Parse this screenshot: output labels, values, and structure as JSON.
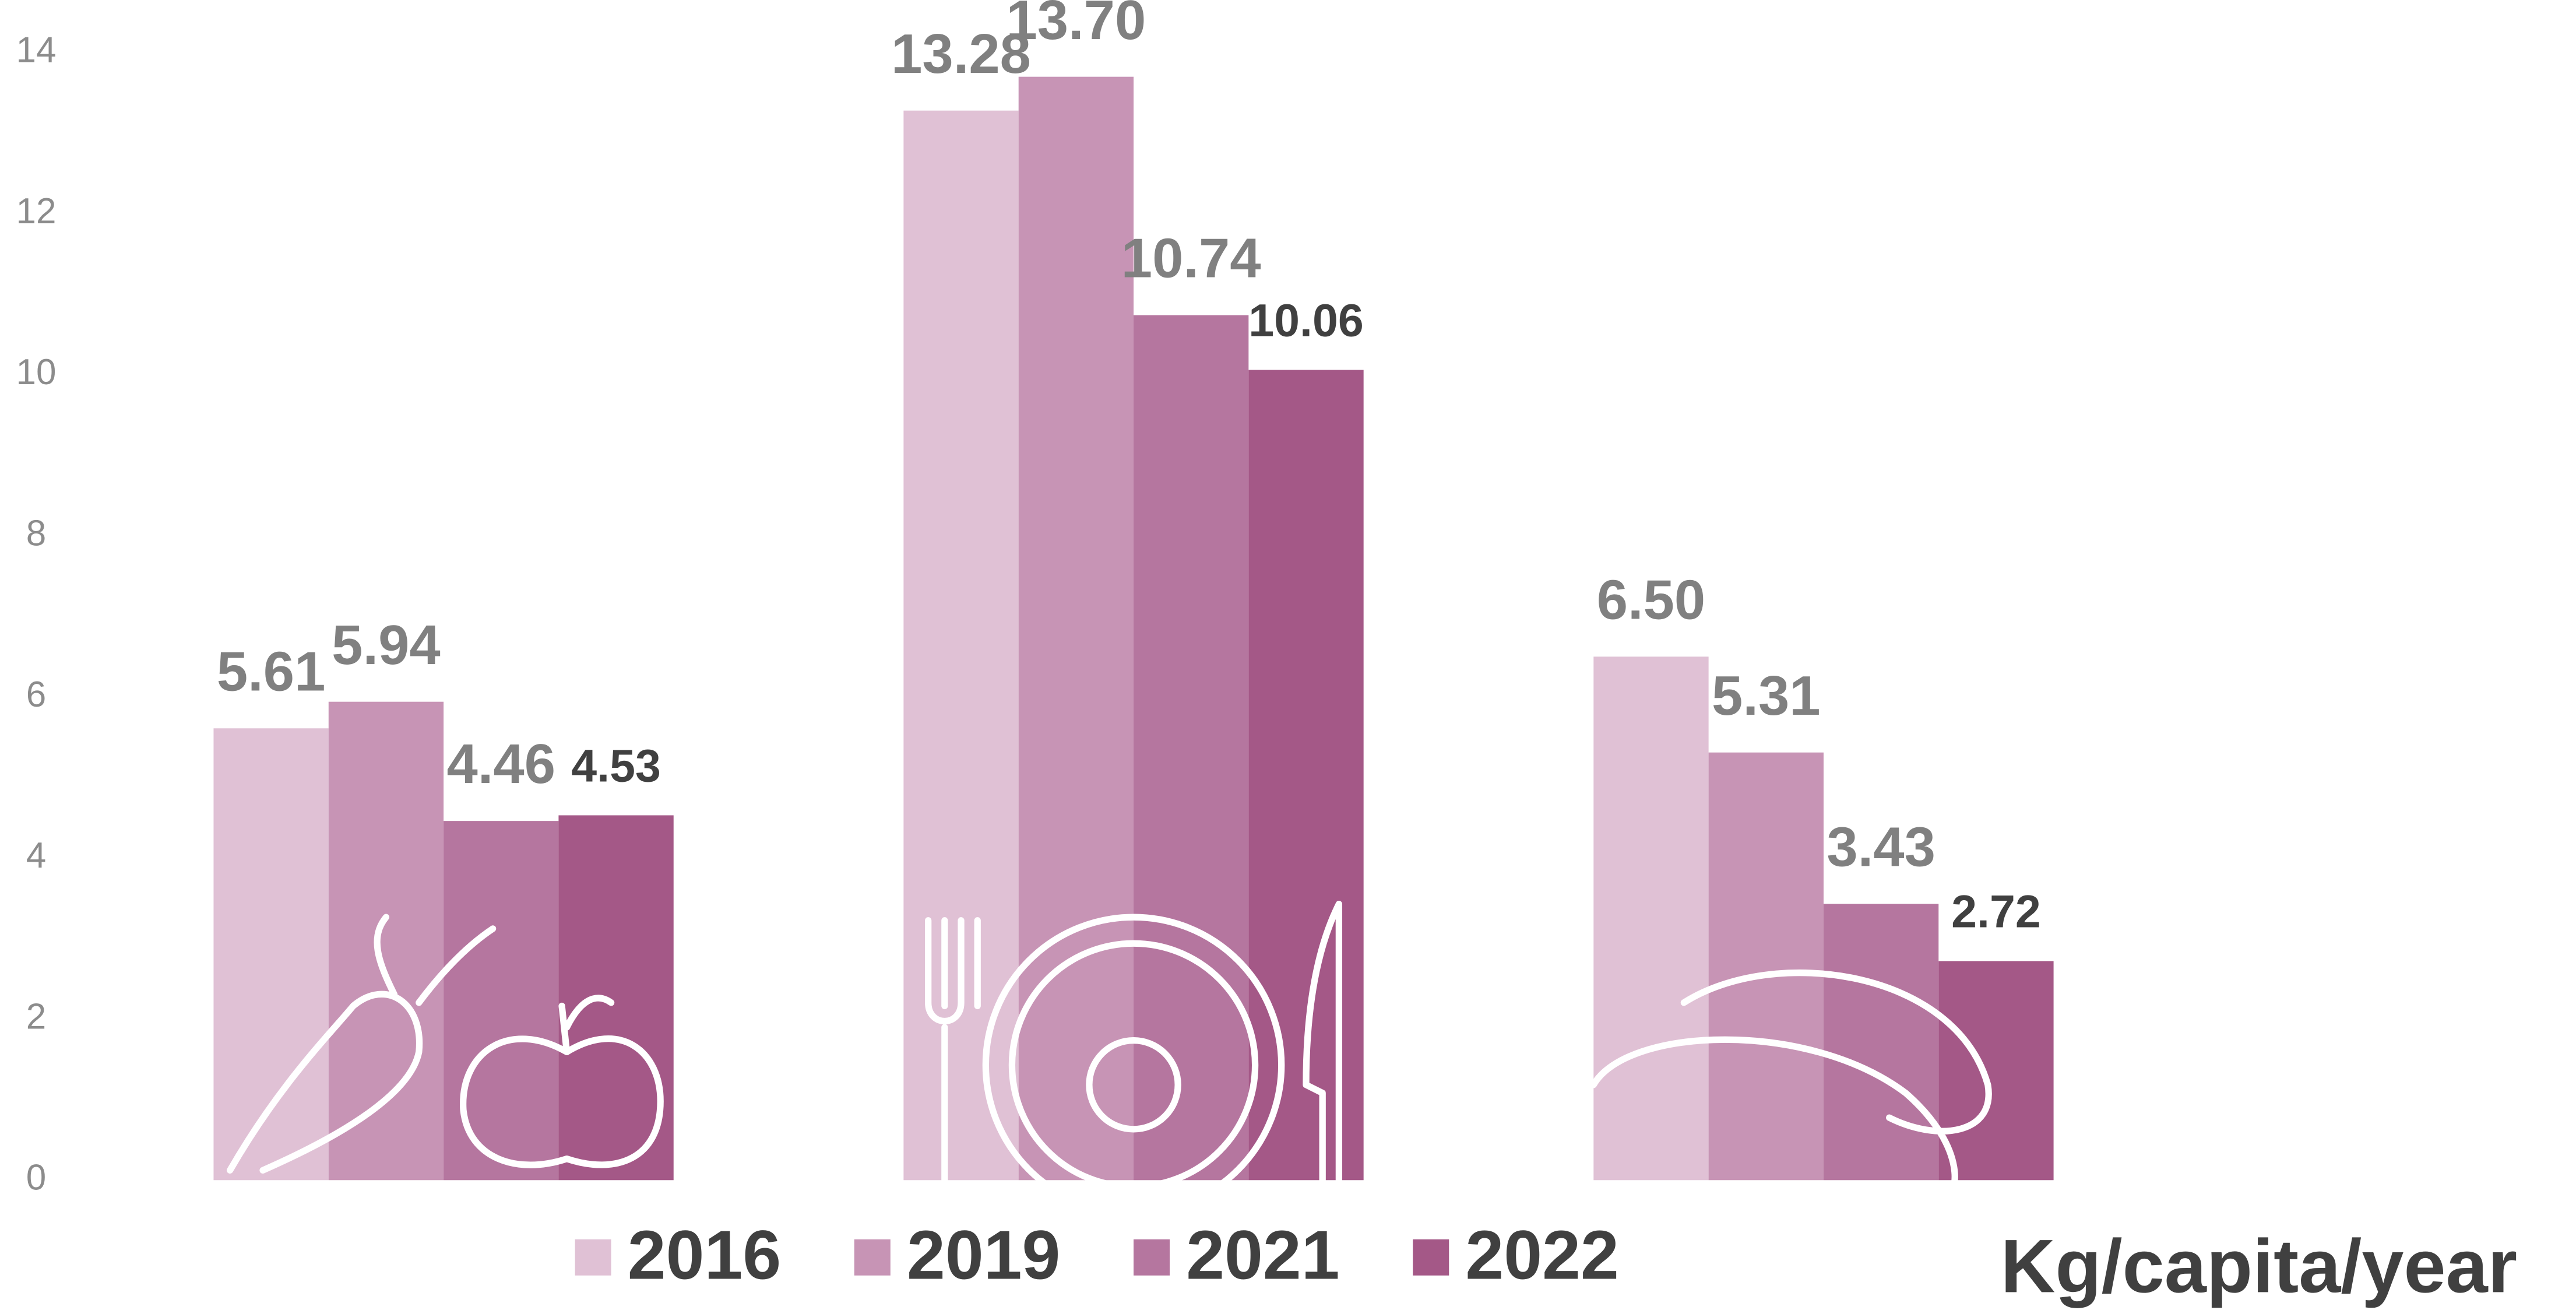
{
  "chart_data": {
    "type": "bar",
    "categories": [
      null,
      null,
      null
    ],
    "series": [
      {
        "name": "2016",
        "color": "#e0c1d5",
        "values": [
          5.61,
          13.28,
          6.5
        ],
        "value_labels": [
          "5.61",
          "13.28",
          "6.50"
        ]
      },
      {
        "name": "2019",
        "color": "#c794b5",
        "values": [
          5.94,
          13.7,
          5.31
        ],
        "value_labels": [
          "5.94",
          "13.70",
          "5.31"
        ]
      },
      {
        "name": "2021",
        "color": "#b5769f",
        "values": [
          4.46,
          10.74,
          3.43
        ],
        "value_labels": [
          "4.46",
          "10.74",
          "3.43"
        ]
      },
      {
        "name": "2022",
        "color": "#a45887",
        "values": [
          4.53,
          10.06,
          2.72
        ],
        "value_labels": [
          "4.53",
          "10.06",
          "2.72"
        ]
      }
    ],
    "ylim": [
      0,
      14
    ],
    "yticks": [
      0,
      2,
      4,
      6,
      8,
      10,
      12,
      14
    ],
    "grid": false,
    "unit_label": "Kg/capita/year",
    "legend": "bottom"
  }
}
